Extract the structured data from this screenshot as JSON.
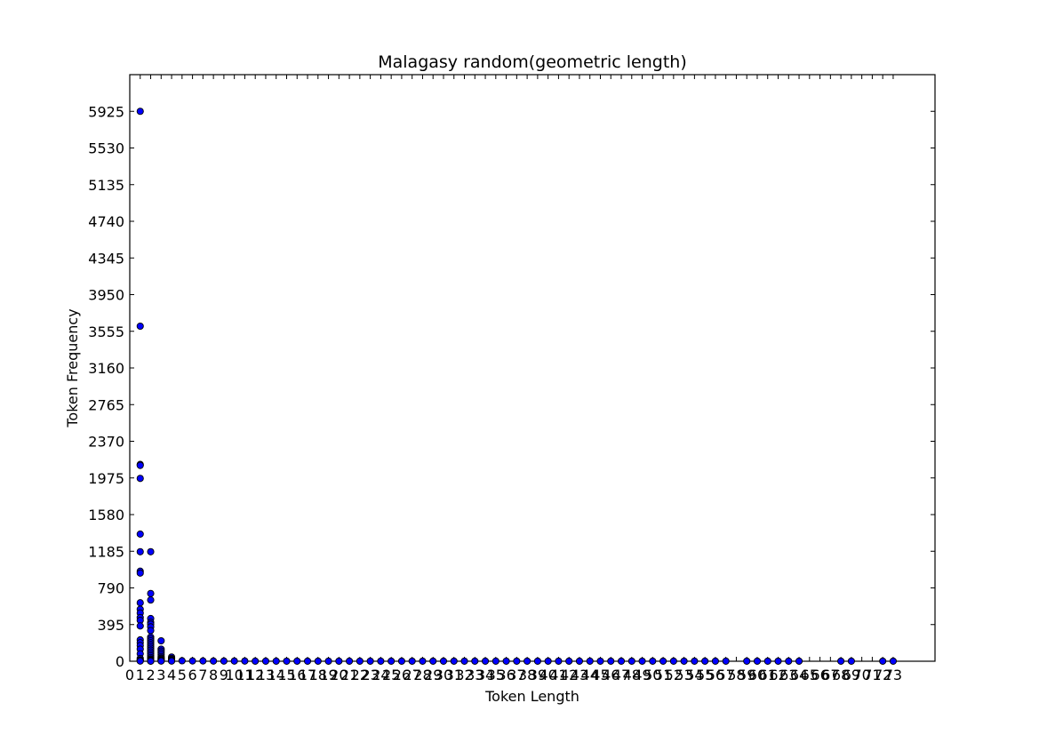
{
  "chart_data": {
    "type": "scatter",
    "title": "Malagasy random(geometric length)",
    "xlabel": "Token Length",
    "ylabel": "Token Frequency",
    "xlim": [
      0,
      77
    ],
    "ylim": [
      0,
      6320
    ],
    "x_ticks": [
      0,
      1,
      2,
      3,
      4,
      5,
      6,
      7,
      8,
      9,
      10,
      11,
      12,
      13,
      14,
      15,
      16,
      17,
      18,
      19,
      20,
      21,
      22,
      23,
      24,
      25,
      26,
      27,
      28,
      29,
      30,
      31,
      32,
      33,
      34,
      35,
      36,
      37,
      38,
      39,
      40,
      41,
      42,
      43,
      44,
      45,
      46,
      47,
      48,
      49,
      50,
      51,
      52,
      53,
      54,
      55,
      56,
      57,
      58,
      59,
      60,
      61,
      62,
      63,
      64,
      65,
      66,
      67,
      68,
      69,
      70,
      71,
      72,
      73
    ],
    "y_ticks": [
      0,
      395,
      790,
      1185,
      1580,
      1975,
      2370,
      2765,
      3160,
      3555,
      3950,
      4345,
      4740,
      5135,
      5530,
      5925
    ],
    "grid": false,
    "legend": "none",
    "marker_color": "#0000ff",
    "series": [
      {
        "x": [
          1,
          1,
          1,
          1,
          1,
          1,
          1,
          1,
          1,
          1,
          1,
          1,
          1,
          1,
          1,
          1,
          1,
          1,
          1,
          1,
          1,
          1,
          1,
          1,
          1,
          2,
          2,
          2,
          2,
          2,
          2,
          2,
          2,
          2,
          2,
          2,
          2,
          2,
          2,
          2,
          2,
          2,
          2,
          2,
          2,
          2,
          2,
          2,
          2,
          2,
          2,
          2,
          2,
          3,
          3,
          3,
          3,
          3,
          3,
          3,
          3,
          3,
          3,
          3,
          3,
          4,
          4,
          4,
          4,
          4,
          4,
          5,
          6,
          7,
          8,
          9,
          10,
          11,
          12,
          13,
          14,
          15,
          16,
          17,
          18,
          19,
          20,
          21,
          22,
          23,
          24,
          25,
          26,
          27,
          28,
          29,
          30,
          31,
          32,
          33,
          34,
          35,
          36,
          37,
          38,
          39,
          40,
          41,
          42,
          43,
          44,
          45,
          46,
          47,
          48,
          49,
          50,
          51,
          52,
          53,
          54,
          55,
          56,
          57,
          59,
          60,
          61,
          62,
          63,
          64,
          68,
          69,
          72,
          73
        ],
        "y": [
          5925,
          3610,
          2120,
          2110,
          1970,
          1370,
          1180,
          970,
          950,
          630,
          560,
          520,
          470,
          440,
          380,
          230,
          200,
          170,
          130,
          80,
          30,
          15,
          10,
          5,
          2,
          1180,
          730,
          660,
          460,
          420,
          400,
          370,
          330,
          260,
          240,
          220,
          200,
          180,
          160,
          140,
          120,
          100,
          80,
          60,
          40,
          25,
          15,
          10,
          5,
          4,
          3,
          2,
          1,
          220,
          130,
          110,
          90,
          70,
          50,
          35,
          25,
          15,
          10,
          5,
          2,
          45,
          30,
          20,
          10,
          5,
          2,
          5,
          3,
          3,
          2,
          2,
          2,
          2,
          1,
          1,
          1,
          1,
          1,
          1,
          1,
          1,
          1,
          1,
          1,
          1,
          1,
          1,
          1,
          1,
          1,
          1,
          1,
          1,
          1,
          1,
          1,
          1,
          1,
          1,
          1,
          1,
          1,
          1,
          1,
          1,
          1,
          1,
          1,
          1,
          1,
          1,
          1,
          1,
          1,
          1,
          1,
          1,
          1,
          1,
          1,
          1,
          1,
          1,
          1,
          1,
          1,
          1,
          1,
          1
        ]
      }
    ]
  }
}
